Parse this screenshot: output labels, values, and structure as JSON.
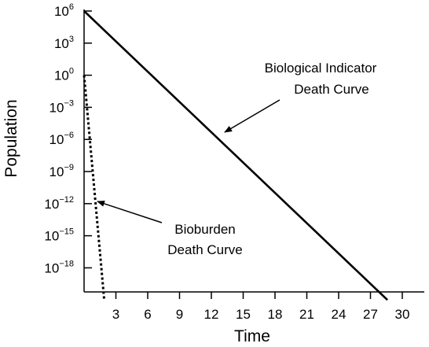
{
  "chart_data": {
    "type": "line",
    "xlabel": "Time",
    "ylabel": "Population",
    "y_scale": "log10",
    "x_ticks": [
      3,
      6,
      9,
      12,
      15,
      18,
      21,
      24,
      27,
      30
    ],
    "y_ticks": [
      {
        "base": "10",
        "exp": "6"
      },
      {
        "base": "10",
        "exp": "3"
      },
      {
        "base": "10",
        "exp": "0"
      },
      {
        "base": "10",
        "exp": "−3"
      },
      {
        "base": "10",
        "exp": "−6"
      },
      {
        "base": "10",
        "exp": "−9"
      },
      {
        "base": "10",
        "exp": "−12"
      },
      {
        "base": "10",
        "exp": "−15"
      },
      {
        "base": "10",
        "exp": "−18"
      }
    ],
    "series": [
      {
        "name": "Biological Indicator Death Curve",
        "style": "solid",
        "points": [
          {
            "x": 0,
            "y": 1000000.0
          },
          {
            "x": 28.6,
            "y": 1e-21
          }
        ]
      },
      {
        "name": "Bioburden Death Curve",
        "style": "dotted",
        "points": [
          {
            "x": 0,
            "y": 1.0
          },
          {
            "x": 1.9,
            "y": 1e-21
          }
        ]
      }
    ],
    "annotations": [
      {
        "lines": [
          "Biological Indicator",
          "Death Curve"
        ],
        "points_to": "Biological Indicator Death Curve"
      },
      {
        "lines": [
          "Bioburden",
          "Death Curve"
        ],
        "points_to": "Bioburden Death Curve"
      }
    ]
  }
}
